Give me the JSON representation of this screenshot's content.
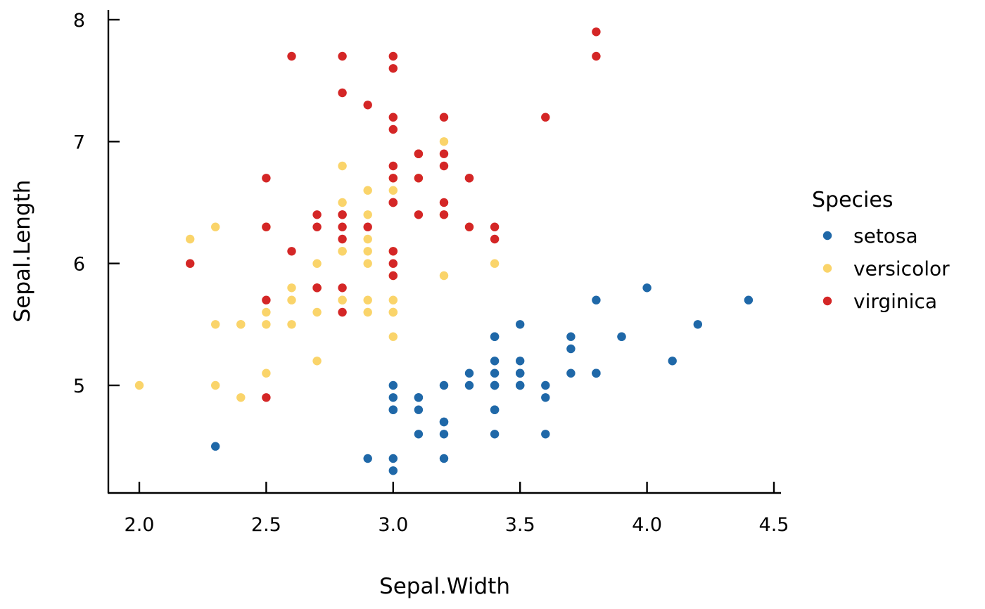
{
  "chart_data": {
    "type": "scatter",
    "xlabel": "Sepal.Width",
    "ylabel": "Sepal.Length",
    "xlim": [
      1.875,
      4.525
    ],
    "ylim": [
      4.12,
      8.08
    ],
    "xticks": [
      2.0,
      2.5,
      3.0,
      3.5,
      4.0,
      4.5
    ],
    "xtick_labels": [
      "2.0",
      "2.5",
      "3.0",
      "3.5",
      "4.0",
      "4.5"
    ],
    "yticks": [
      5,
      6,
      7,
      8
    ],
    "ytick_labels": [
      "5",
      "6",
      "7",
      "8"
    ],
    "grid": false,
    "legend": {
      "title": "Species",
      "position": "right"
    },
    "series": [
      {
        "name": "setosa",
        "color": "#1f68a8",
        "points": [
          [
            3.5,
            5.1
          ],
          [
            3.0,
            4.9
          ],
          [
            3.2,
            4.7
          ],
          [
            3.1,
            4.6
          ],
          [
            3.6,
            5.0
          ],
          [
            3.9,
            5.4
          ],
          [
            3.4,
            4.6
          ],
          [
            3.4,
            5.0
          ],
          [
            2.9,
            4.4
          ],
          [
            3.1,
            4.9
          ],
          [
            3.7,
            5.4
          ],
          [
            3.4,
            4.8
          ],
          [
            3.0,
            4.8
          ],
          [
            3.0,
            4.3
          ],
          [
            4.0,
            5.8
          ],
          [
            4.4,
            5.7
          ],
          [
            3.9,
            5.4
          ],
          [
            3.5,
            5.1
          ],
          [
            3.8,
            5.7
          ],
          [
            3.8,
            5.1
          ],
          [
            3.4,
            5.4
          ],
          [
            3.7,
            5.1
          ],
          [
            3.6,
            4.6
          ],
          [
            3.3,
            5.1
          ],
          [
            3.4,
            4.8
          ],
          [
            3.0,
            5.0
          ],
          [
            3.4,
            5.0
          ],
          [
            3.5,
            5.2
          ],
          [
            3.4,
            5.2
          ],
          [
            3.2,
            4.7
          ],
          [
            3.1,
            4.8
          ],
          [
            3.4,
            5.4
          ],
          [
            4.1,
            5.2
          ],
          [
            4.2,
            5.5
          ],
          [
            3.1,
            4.9
          ],
          [
            3.2,
            5.0
          ],
          [
            3.5,
            5.5
          ],
          [
            3.6,
            4.9
          ],
          [
            3.0,
            4.4
          ],
          [
            3.4,
            5.1
          ],
          [
            3.5,
            5.0
          ],
          [
            2.3,
            4.5
          ],
          [
            3.2,
            4.4
          ],
          [
            3.5,
            5.0
          ],
          [
            3.8,
            5.1
          ],
          [
            3.0,
            4.8
          ],
          [
            3.8,
            5.1
          ],
          [
            3.2,
            4.6
          ],
          [
            3.7,
            5.3
          ],
          [
            3.3,
            5.0
          ]
        ]
      },
      {
        "name": "versicolor",
        "color": "#fad46a",
        "points": [
          [
            3.2,
            7.0
          ],
          [
            3.2,
            6.4
          ],
          [
            3.1,
            6.9
          ],
          [
            2.3,
            5.5
          ],
          [
            2.8,
            6.5
          ],
          [
            2.8,
            5.7
          ],
          [
            3.3,
            6.3
          ],
          [
            2.4,
            4.9
          ],
          [
            2.9,
            6.6
          ],
          [
            2.7,
            5.2
          ],
          [
            2.0,
            5.0
          ],
          [
            3.0,
            5.9
          ],
          [
            2.2,
            6.0
          ],
          [
            2.9,
            6.1
          ],
          [
            2.9,
            5.6
          ],
          [
            3.1,
            6.7
          ],
          [
            3.0,
            5.6
          ],
          [
            2.7,
            5.8
          ],
          [
            2.2,
            6.2
          ],
          [
            2.5,
            5.6
          ],
          [
            3.2,
            5.9
          ],
          [
            2.8,
            6.1
          ],
          [
            2.5,
            6.3
          ],
          [
            2.8,
            6.1
          ],
          [
            2.9,
            6.4
          ],
          [
            3.0,
            6.6
          ],
          [
            2.8,
            6.8
          ],
          [
            3.0,
            6.7
          ],
          [
            2.9,
            6.0
          ],
          [
            2.6,
            5.7
          ],
          [
            2.4,
            5.5
          ],
          [
            2.4,
            5.5
          ],
          [
            2.7,
            5.8
          ],
          [
            2.7,
            6.0
          ],
          [
            3.0,
            5.4
          ],
          [
            3.4,
            6.0
          ],
          [
            3.1,
            6.7
          ],
          [
            2.3,
            6.3
          ],
          [
            3.0,
            5.6
          ],
          [
            2.5,
            5.5
          ],
          [
            2.6,
            5.5
          ],
          [
            3.0,
            6.1
          ],
          [
            2.6,
            5.8
          ],
          [
            2.3,
            5.0
          ],
          [
            2.7,
            5.6
          ],
          [
            3.0,
            5.7
          ],
          [
            2.9,
            5.7
          ],
          [
            2.9,
            6.2
          ],
          [
            2.5,
            5.1
          ],
          [
            2.8,
            5.7
          ]
        ]
      },
      {
        "name": "virginica",
        "color": "#d42626",
        "points": [
          [
            3.3,
            6.3
          ],
          [
            2.7,
            5.8
          ],
          [
            3.0,
            7.1
          ],
          [
            2.9,
            6.3
          ],
          [
            3.0,
            6.5
          ],
          [
            3.0,
            7.6
          ],
          [
            2.5,
            4.9
          ],
          [
            2.9,
            7.3
          ],
          [
            2.5,
            6.7
          ],
          [
            3.6,
            7.2
          ],
          [
            3.2,
            6.5
          ],
          [
            2.7,
            6.4
          ],
          [
            3.0,
            6.8
          ],
          [
            2.5,
            5.7
          ],
          [
            2.8,
            5.8
          ],
          [
            3.2,
            6.4
          ],
          [
            3.0,
            6.5
          ],
          [
            3.8,
            7.7
          ],
          [
            2.6,
            7.7
          ],
          [
            2.2,
            6.0
          ],
          [
            3.2,
            6.9
          ],
          [
            2.8,
            5.6
          ],
          [
            2.8,
            7.7
          ],
          [
            2.7,
            6.3
          ],
          [
            3.3,
            6.7
          ],
          [
            3.2,
            7.2
          ],
          [
            2.8,
            6.2
          ],
          [
            3.0,
            6.1
          ],
          [
            2.8,
            6.4
          ],
          [
            3.0,
            7.2
          ],
          [
            2.8,
            7.4
          ],
          [
            3.8,
            7.9
          ],
          [
            2.8,
            6.4
          ],
          [
            2.8,
            6.3
          ],
          [
            2.6,
            6.1
          ],
          [
            3.0,
            7.7
          ],
          [
            3.4,
            6.3
          ],
          [
            3.1,
            6.4
          ],
          [
            3.0,
            6.0
          ],
          [
            3.1,
            6.9
          ],
          [
            3.1,
            6.7
          ],
          [
            3.1,
            6.9
          ],
          [
            2.7,
            5.8
          ],
          [
            3.2,
            6.8
          ],
          [
            3.3,
            6.7
          ],
          [
            3.0,
            6.7
          ],
          [
            2.5,
            6.3
          ],
          [
            3.0,
            6.5
          ],
          [
            3.4,
            6.2
          ],
          [
            3.0,
            5.9
          ]
        ]
      }
    ]
  }
}
